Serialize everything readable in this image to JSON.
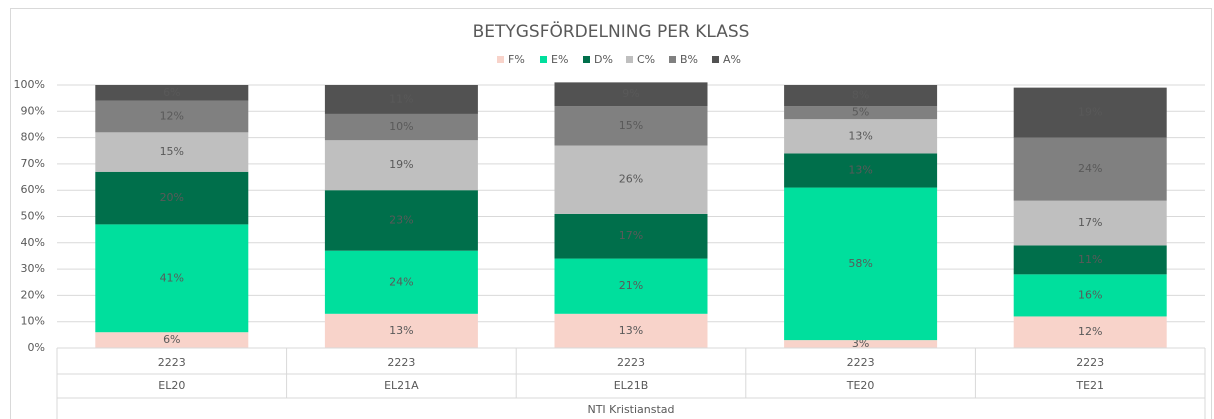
{
  "chart_data": {
    "type": "stacked_bar",
    "title": "BETYGSFÖRDELNING PER KLASS",
    "categories": [
      "EL20",
      "EL21A",
      "EL21B",
      "TE20",
      "TE21"
    ],
    "periods": [
      "2223",
      "2223",
      "2223",
      "2223",
      "2223"
    ],
    "group": "NTI Kristianstad",
    "series": [
      {
        "name": "F%",
        "color": "#f8d3ca",
        "values": [
          6,
          13,
          13,
          3,
          12
        ],
        "value_labels": [
          "6%",
          "13%",
          "13%",
          "3%",
          "12%"
        ]
      },
      {
        "name": "E%",
        "color": "#00df9d",
        "values": [
          41,
          24,
          21,
          58,
          16
        ],
        "value_labels": [
          "41%",
          "24%",
          "21%",
          "58%",
          "16%"
        ]
      },
      {
        "name": "D%",
        "color": "#006f4b",
        "values": [
          20,
          23,
          17,
          13,
          11
        ],
        "value_labels": [
          "20%",
          "23%",
          "17%",
          "13%",
          "11%"
        ]
      },
      {
        "name": "C%",
        "color": "#bfbfbf",
        "values": [
          15,
          19,
          26,
          13,
          17
        ],
        "value_labels": [
          "15%",
          "19%",
          "26%",
          "13%",
          "17%"
        ]
      },
      {
        "name": "B%",
        "color": "#808080",
        "values": [
          12,
          10,
          15,
          5,
          24
        ],
        "value_labels": [
          "12%",
          "10%",
          "15%",
          "5%",
          "24%"
        ]
      },
      {
        "name": "A%",
        "color": "#525252",
        "values": [
          6,
          11,
          9,
          8,
          19
        ],
        "value_labels": [
          "6%",
          "11%",
          "9%",
          "8%",
          "19%"
        ]
      }
    ],
    "ylim": [
      0,
      100
    ],
    "yticks": [
      {
        "value": 0,
        "label": "0%"
      },
      {
        "value": 10,
        "label": "10%"
      },
      {
        "value": 20,
        "label": "20%"
      },
      {
        "value": 30,
        "label": "30%"
      },
      {
        "value": 40,
        "label": "40%"
      },
      {
        "value": 50,
        "label": "50%"
      },
      {
        "value": 60,
        "label": "60%"
      },
      {
        "value": 70,
        "label": "70%"
      },
      {
        "value": 80,
        "label": "80%"
      },
      {
        "value": 90,
        "label": "90%"
      },
      {
        "value": 100,
        "label": "100%"
      }
    ],
    "grid": true,
    "legend": "top"
  }
}
